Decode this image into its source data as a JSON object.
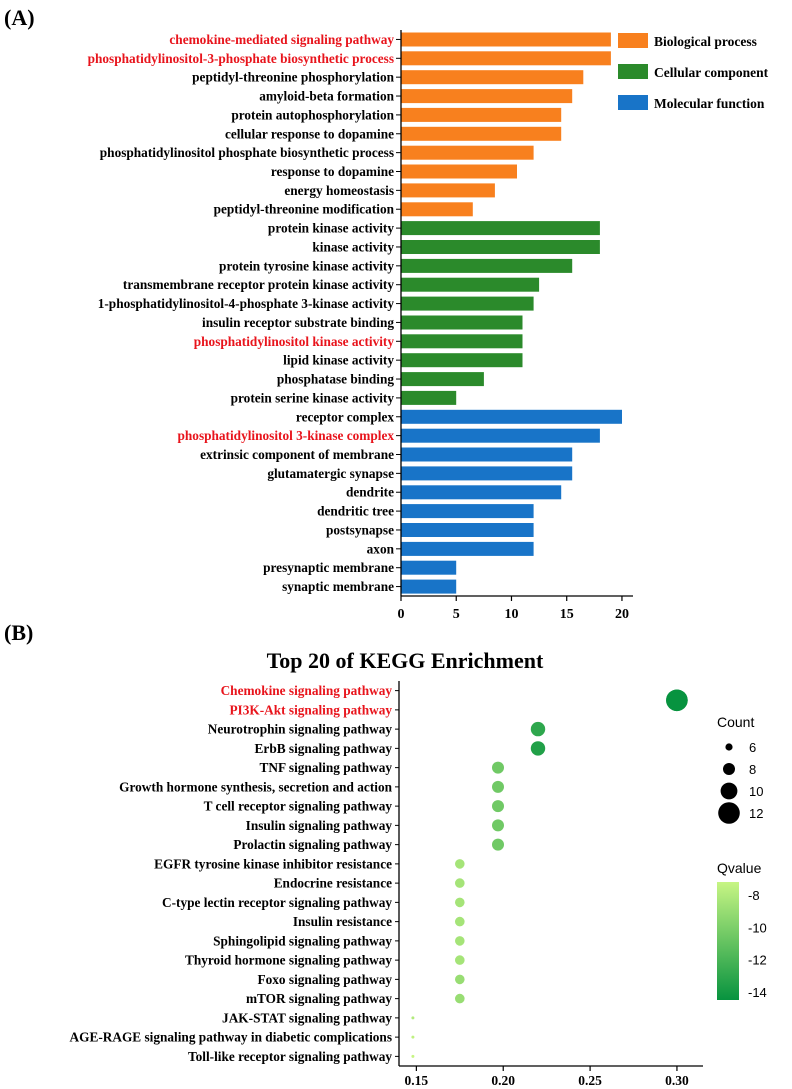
{
  "panel_labels": {
    "a": "(A)",
    "b": "(B)"
  },
  "highlight_color": "#e8141c",
  "text_color": "#000000",
  "chart_data": [
    {
      "type": "bar",
      "orientation": "horizontal",
      "title": "",
      "xlabel": "",
      "ylabel": "",
      "xlim": [
        0,
        21
      ],
      "xticks": [
        "0",
        "5",
        "10",
        "15",
        "20"
      ],
      "legend_position": "top-right",
      "legend": [
        {
          "name": "Biological process",
          "color": "#f8801e"
        },
        {
          "name": "Cellular component",
          "color": "#2b8a2b"
        },
        {
          "name": "Molecular function",
          "color": "#1874c8"
        }
      ],
      "categories": [
        {
          "label": "chemokine-mediated signaling pathway",
          "value": 19,
          "group": 0,
          "highlight": true
        },
        {
          "label": "phosphatidylinositol-3-phosphate biosynthetic process",
          "value": 19,
          "group": 0,
          "highlight": true
        },
        {
          "label": "peptidyl-threonine phosphorylation",
          "value": 16.5,
          "group": 0,
          "highlight": false
        },
        {
          "label": "amyloid-beta formation",
          "value": 15.5,
          "group": 0,
          "highlight": false
        },
        {
          "label": "protein autophosphorylation",
          "value": 14.5,
          "group": 0,
          "highlight": false
        },
        {
          "label": "cellular response to dopamine",
          "value": 14.5,
          "group": 0,
          "highlight": false
        },
        {
          "label": "phosphatidylinositol phosphate biosynthetic process",
          "value": 12,
          "group": 0,
          "highlight": false
        },
        {
          "label": "response to dopamine",
          "value": 10.5,
          "group": 0,
          "highlight": false
        },
        {
          "label": "energy homeostasis",
          "value": 8.5,
          "group": 0,
          "highlight": false
        },
        {
          "label": "peptidyl-threonine modification",
          "value": 6.5,
          "group": 0,
          "highlight": false
        },
        {
          "label": "protein kinase activity",
          "value": 18,
          "group": 1,
          "highlight": false
        },
        {
          "label": "kinase activity",
          "value": 18,
          "group": 1,
          "highlight": false
        },
        {
          "label": "protein tyrosine kinase activity",
          "value": 15.5,
          "group": 1,
          "highlight": false
        },
        {
          "label": "transmembrane receptor protein kinase activity",
          "value": 12.5,
          "group": 1,
          "highlight": false
        },
        {
          "label": "1-phosphatidylinositol-4-phosphate 3-kinase activity",
          "value": 12,
          "group": 1,
          "highlight": false
        },
        {
          "label": "insulin receptor substrate binding",
          "value": 11,
          "group": 1,
          "highlight": false
        },
        {
          "label": "phosphatidylinositol kinase activity",
          "value": 11,
          "group": 1,
          "highlight": true
        },
        {
          "label": "lipid kinase activity",
          "value": 11,
          "group": 1,
          "highlight": false
        },
        {
          "label": "phosphatase binding",
          "value": 7.5,
          "group": 1,
          "highlight": false
        },
        {
          "label": "protein serine kinase activity",
          "value": 5,
          "group": 1,
          "highlight": false
        },
        {
          "label": "receptor complex",
          "value": 20,
          "group": 2,
          "highlight": false
        },
        {
          "label": "phosphatidylinositol 3-kinase complex",
          "value": 18,
          "group": 2,
          "highlight": true
        },
        {
          "label": "extrinsic component of membrane",
          "value": 15.5,
          "group": 2,
          "highlight": false
        },
        {
          "label": "glutamatergic synapse",
          "value": 15.5,
          "group": 2,
          "highlight": false
        },
        {
          "label": "dendrite",
          "value": 14.5,
          "group": 2,
          "highlight": false
        },
        {
          "label": "dendritic tree",
          "value": 12,
          "group": 2,
          "highlight": false
        },
        {
          "label": "postsynapse",
          "value": 12,
          "group": 2,
          "highlight": false
        },
        {
          "label": "axon",
          "value": 12,
          "group": 2,
          "highlight": false
        },
        {
          "label": "presynaptic membrane",
          "value": 5,
          "group": 2,
          "highlight": false
        },
        {
          "label": "synaptic membrane",
          "value": 5,
          "group": 2,
          "highlight": false
        }
      ]
    },
    {
      "type": "scatter",
      "title": "Top 20 of KEGG Enrichment",
      "xlabel": "",
      "ylabel": "",
      "xlim": [
        0.14,
        0.315
      ],
      "xticks": [
        "0.15",
        "0.20",
        "0.25",
        "0.30"
      ],
      "size_legend": {
        "title": "Count",
        "values": [
          "6",
          "8",
          "10",
          "12"
        ]
      },
      "color_legend": {
        "title": "Qvalue",
        "ticks": [
          "-8",
          "-10",
          "-12",
          "-14"
        ],
        "range": [
          -14.5,
          -7.2
        ],
        "color_high": "#c7f584",
        "color_low": "#07933f"
      },
      "points": [
        {
          "label": "Chemokine signaling pathway",
          "x": 0.3,
          "count": 12,
          "q": -14.5,
          "highlight": true
        },
        {
          "label": "PI3K-Akt signaling pathway",
          "x": 0.3,
          "count": 12,
          "q": -14.5,
          "highlight": true
        },
        {
          "label": "Neurotrophin signaling pathway",
          "x": 0.22,
          "count": 9,
          "q": -13,
          "highlight": false
        },
        {
          "label": "ErbB signaling pathway",
          "x": 0.22,
          "count": 9,
          "q": -13.5,
          "highlight": false
        },
        {
          "label": "TNF signaling pathway",
          "x": 0.197,
          "count": 8,
          "q": -10.5,
          "highlight": false
        },
        {
          "label": "Growth hormone synthesis, secretion and action",
          "x": 0.197,
          "count": 8,
          "q": -10.5,
          "highlight": false
        },
        {
          "label": "T cell receptor signaling pathway",
          "x": 0.197,
          "count": 8,
          "q": -10.5,
          "highlight": false
        },
        {
          "label": "Insulin signaling pathway",
          "x": 0.197,
          "count": 8,
          "q": -10.5,
          "highlight": false
        },
        {
          "label": "Prolactin signaling pathway",
          "x": 0.197,
          "count": 8,
          "q": -10.5,
          "highlight": false
        },
        {
          "label": "EGFR tyrosine kinase inhibitor resistance",
          "x": 0.175,
          "count": 7,
          "q": -8.5,
          "highlight": false
        },
        {
          "label": "Endocrine resistance",
          "x": 0.175,
          "count": 7,
          "q": -8.5,
          "highlight": false
        },
        {
          "label": "C-type lectin receptor signaling pathway",
          "x": 0.175,
          "count": 7,
          "q": -8.5,
          "highlight": false
        },
        {
          "label": "Insulin resistance",
          "x": 0.175,
          "count": 7,
          "q": -8.5,
          "highlight": false
        },
        {
          "label": "Sphingolipid signaling pathway",
          "x": 0.175,
          "count": 7,
          "q": -8.5,
          "highlight": false
        },
        {
          "label": "Thyroid hormone signaling pathway",
          "x": 0.175,
          "count": 7,
          "q": -8.5,
          "highlight": false
        },
        {
          "label": "Foxo signaling pathway",
          "x": 0.175,
          "count": 7,
          "q": -9,
          "highlight": false
        },
        {
          "label": "mTOR signaling pathway",
          "x": 0.175,
          "count": 7,
          "q": -9,
          "highlight": false
        },
        {
          "label": "JAK-STAT signaling pathway",
          "x": 0.148,
          "count": 4,
          "q": -8,
          "highlight": false
        },
        {
          "label": "AGE-RAGE signaling pathway in diabetic complications",
          "x": 0.148,
          "count": 4,
          "q": -7.5,
          "highlight": false
        },
        {
          "label": "Toll-like receptor signaling pathway",
          "x": 0.148,
          "count": 4,
          "q": -7.2,
          "highlight": false
        }
      ]
    }
  ]
}
